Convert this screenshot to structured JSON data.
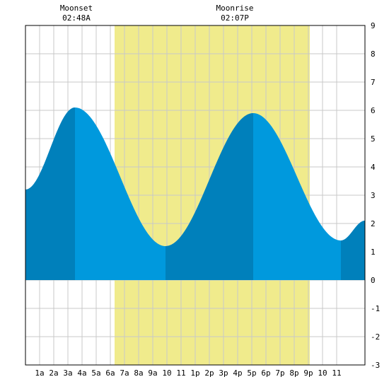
{
  "chart_data": {
    "type": "area",
    "title": "",
    "xlabel": "",
    "ylabel": "",
    "x_unit": "hour of day",
    "xlim": [
      0,
      24
    ],
    "ylim": [
      -3,
      9
    ],
    "y_ticks": [
      -3,
      -2,
      -1,
      0,
      1,
      2,
      3,
      4,
      5,
      6,
      7,
      8,
      9
    ],
    "x_ticks": [
      {
        "x": 1,
        "label": "1a"
      },
      {
        "x": 2,
        "label": "2a"
      },
      {
        "x": 3,
        "label": "3a"
      },
      {
        "x": 4,
        "label": "4a"
      },
      {
        "x": 5,
        "label": "5a"
      },
      {
        "x": 6,
        "label": "6a"
      },
      {
        "x": 7,
        "label": "7a"
      },
      {
        "x": 8,
        "label": "8a"
      },
      {
        "x": 9,
        "label": "9a"
      },
      {
        "x": 10,
        "label": "10"
      },
      {
        "x": 11,
        "label": "11"
      },
      {
        "x": 12,
        "label": "1p"
      },
      {
        "x": 13,
        "label": "2p"
      },
      {
        "x": 14,
        "label": "3p"
      },
      {
        "x": 15,
        "label": "4p"
      },
      {
        "x": 16,
        "label": "5p"
      },
      {
        "x": 17,
        "label": "6p"
      },
      {
        "x": 18,
        "label": "7p"
      },
      {
        "x": 19,
        "label": "8p"
      },
      {
        "x": 20,
        "label": "9p"
      },
      {
        "x": 21,
        "label": "10"
      },
      {
        "x": 22,
        "label": "11"
      }
    ],
    "grid": true,
    "daylight": [
      6.3,
      20.1
    ],
    "tide_extrema": [
      {
        "x": 0.0,
        "y": 3.2
      },
      {
        "x": 3.5,
        "y": 6.1
      },
      {
        "x": 9.9,
        "y": 1.2
      },
      {
        "x": 16.1,
        "y": 5.9
      },
      {
        "x": 22.3,
        "y": 1.4
      },
      {
        "x": 24.0,
        "y": 2.1
      }
    ],
    "dark_bands": [
      [
        0,
        3.5
      ],
      [
        9.9,
        16.1
      ],
      [
        22.3,
        24
      ]
    ],
    "moon_events": [
      {
        "x": 3.6,
        "name": "Moonset",
        "time": "02:48A"
      },
      {
        "x": 14.8,
        "name": "Moonrise",
        "time": "02:07P"
      }
    ],
    "colors": {
      "daylight": "#f0eb8c",
      "tide": "#0099dd",
      "tide_dark": "#0080bb",
      "grid": "#c8c8c8",
      "frame": "#000000",
      "background": "#ffffff"
    }
  }
}
